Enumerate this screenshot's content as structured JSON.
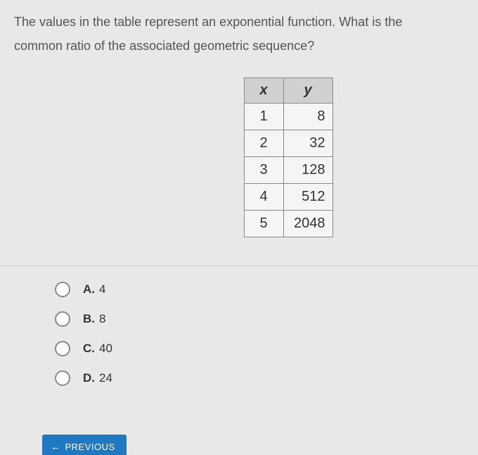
{
  "question": {
    "line1": "The values in the table represent an exponential function. What is the",
    "line2": "common ratio of the associated geometric sequence?"
  },
  "table": {
    "headers": {
      "x": "x",
      "y": "y"
    },
    "rows": [
      {
        "x": "1",
        "y": "8"
      },
      {
        "x": "2",
        "y": "32"
      },
      {
        "x": "3",
        "y": "128"
      },
      {
        "x": "4",
        "y": "512"
      },
      {
        "x": "5",
        "y": "2048"
      }
    ],
    "header_bg": "#d0d0ce",
    "border_color": "#888888",
    "cell_bg": "#f5f5f3"
  },
  "options": [
    {
      "letter": "A.",
      "text": "4"
    },
    {
      "letter": "B.",
      "text": "8"
    },
    {
      "letter": "C.",
      "text": "40"
    },
    {
      "letter": "D.",
      "text": "24"
    }
  ],
  "buttons": {
    "previous": "PREVIOUS"
  },
  "colors": {
    "page_bg": "#e8e8e6",
    "text": "#3a3a3a",
    "button_bg": "#1f78c1",
    "button_text": "#ffffff",
    "radio_border": "#8a8a8a"
  }
}
